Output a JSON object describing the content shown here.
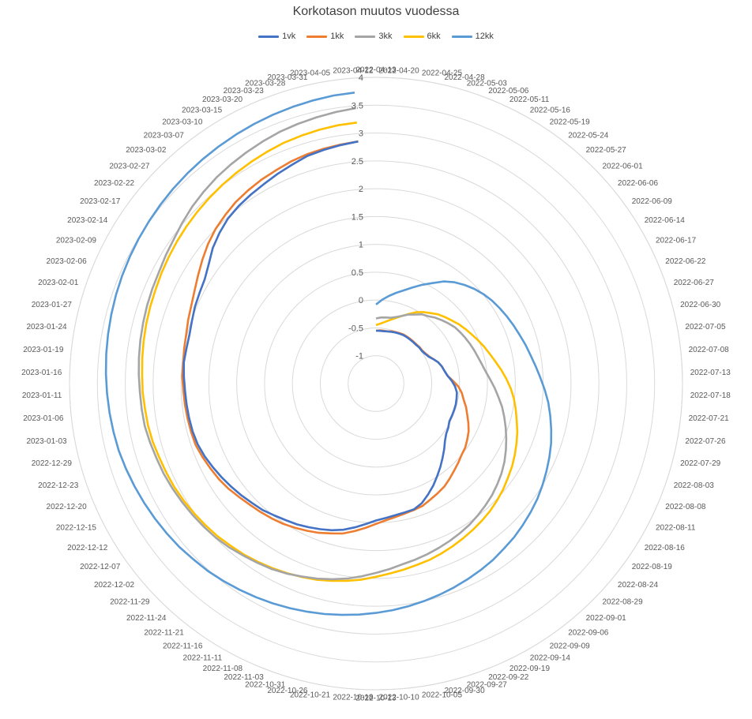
{
  "colors": {
    "1vk": "#4472C4",
    "1kk": "#ED7D31",
    "3kk": "#A5A5A5",
    "6kk": "#FFC000",
    "12kk": "#5B9BD5",
    "grid": "#D9D9D9"
  },
  "chart_data": {
    "type": "radar",
    "title": "Korkotason muutos vuodessa",
    "legend_position": "top",
    "grid": true,
    "r_ticks": [
      "4",
      "3.5",
      "3",
      "2.5",
      "2",
      "1.5",
      "1",
      "0.5",
      "0",
      "-0.5",
      "-1"
    ],
    "rlim": [
      -1.5,
      4
    ],
    "category_labels": [
      "2022-04-13",
      "2022-04-20",
      "2022-04-25",
      "2022-04-28",
      "2022-05-03",
      "2022-05-06",
      "2022-05-11",
      "2022-05-16",
      "2022-05-19",
      "2022-05-24",
      "2022-05-27",
      "2022-06-01",
      "2022-06-06",
      "2022-06-09",
      "2022-06-14",
      "2022-06-17",
      "2022-06-22",
      "2022-06-27",
      "2022-06-30",
      "2022-07-05",
      "2022-07-08",
      "2022-07-13",
      "2022-07-18",
      "2022-07-21",
      "2022-07-26",
      "2022-07-29",
      "2022-08-03",
      "2022-08-08",
      "2022-08-11",
      "2022-08-16",
      "2022-08-19",
      "2022-08-24",
      "2022-08-29",
      "2022-09-01",
      "2022-09-06",
      "2022-09-09",
      "2022-09-14",
      "2022-09-19",
      "2022-09-22",
      "2022-09-27",
      "2022-09-30",
      "2022-10-05",
      "2022-10-10",
      "2022-10-13",
      "2022-10-18",
      "2022-10-21",
      "2022-10-26",
      "2022-10-31",
      "2022-11-03",
      "2022-11-08",
      "2022-11-11",
      "2022-11-16",
      "2022-11-21",
      "2022-11-24",
      "2022-11-29",
      "2022-12-02",
      "2022-12-07",
      "2022-12-12",
      "2022-12-15",
      "2022-12-20",
      "2022-12-23",
      "2022-12-29",
      "2023-01-03",
      "2023-01-06",
      "2023-01-11",
      "2023-01-16",
      "2023-01-19",
      "2023-01-24",
      "2023-01-27",
      "2023-02-01",
      "2023-02-06",
      "2023-02-09",
      "2023-02-14",
      "2023-02-17",
      "2023-02-22",
      "2023-02-27",
      "2023-03-02",
      "2023-03-07",
      "2023-03-10",
      "2023-03-15",
      "2023-03-20",
      "2023-03-23",
      "2023-03-28",
      "2023-03-31",
      "2023-04-05",
      "2023-04-12"
    ],
    "series": [
      {
        "name": "1vk",
        "values": [
          -0.55,
          -0.55,
          -0.55,
          -0.54,
          -0.53,
          -0.52,
          -0.51,
          -0.5,
          -0.5,
          -0.5,
          -0.5,
          -0.5,
          -0.49,
          -0.49,
          -0.47,
          -0.44,
          -0.38,
          -0.32,
          -0.28,
          -0.25,
          -0.21,
          -0.14,
          -0.08,
          -0.04,
          -0.03,
          -0.02,
          -0.02,
          -0.02,
          -0.02,
          0.02,
          0.05,
          0.11,
          0.2,
          0.29,
          0.39,
          0.49,
          0.6,
          0.7,
          0.8,
          0.86,
          0.87,
          0.89,
          0.92,
          0.96,
          1.03,
          1.11,
          1.19,
          1.25,
          1.3,
          1.35,
          1.4,
          1.44,
          1.49,
          1.55,
          1.59,
          1.64,
          1.69,
          1.74,
          1.79,
          1.84,
          1.88,
          1.9,
          1.91,
          1.92,
          1.93,
          1.95,
          1.97,
          1.96,
          1.96,
          1.99,
          2.03,
          2.06,
          2.1,
          2.19,
          2.31,
          2.4,
          2.48,
          2.53,
          2.57,
          2.61,
          2.66,
          2.71,
          2.77,
          2.8,
          2.83,
          2.86
        ]
      },
      {
        "name": "1kk",
        "values": [
          -0.55,
          -0.54,
          -0.54,
          -0.54,
          -0.52,
          -0.51,
          -0.5,
          -0.49,
          -0.49,
          -0.49,
          -0.49,
          -0.49,
          -0.48,
          -0.48,
          -0.46,
          -0.43,
          -0.38,
          -0.32,
          -0.28,
          -0.25,
          -0.21,
          -0.12,
          -0.02,
          0.05,
          0.1,
          0.17,
          0.23,
          0.3,
          0.37,
          0.42,
          0.47,
          0.5,
          0.55,
          0.6,
          0.66,
          0.72,
          0.76,
          0.8,
          0.85,
          0.87,
          0.89,
          0.92,
          0.96,
          1.02,
          1.1,
          1.18,
          1.26,
          1.31,
          1.37,
          1.42,
          1.47,
          1.52,
          1.56,
          1.6,
          1.64,
          1.69,
          1.75,
          1.8,
          1.84,
          1.88,
          1.92,
          1.93,
          1.94,
          1.95,
          1.96,
          1.98,
          1.98,
          2.0,
          2.02,
          2.06,
          2.1,
          2.16,
          2.24,
          2.33,
          2.42,
          2.5,
          2.56,
          2.62,
          2.66,
          2.7,
          2.73,
          2.77,
          2.8,
          2.82,
          2.84,
          2.86
        ]
      },
      {
        "name": "3kk",
        "values": [
          -0.33,
          -0.31,
          -0.3,
          -0.29,
          -0.25,
          -0.2,
          -0.13,
          -0.08,
          -0.01,
          0.03,
          0.09,
          0.14,
          0.19,
          0.24,
          0.27,
          0.3,
          0.33,
          0.36,
          0.39,
          0.43,
          0.48,
          0.55,
          0.63,
          0.71,
          0.8,
          0.88,
          0.96,
          1.04,
          1.12,
          1.2,
          1.27,
          1.33,
          1.39,
          1.44,
          1.49,
          1.54,
          1.58,
          1.62,
          1.66,
          1.7,
          1.74,
          1.78,
          1.84,
          1.9,
          1.97,
          2.04,
          2.1,
          2.16,
          2.21,
          2.27,
          2.32,
          2.36,
          2.4,
          2.45,
          2.49,
          2.52,
          2.55,
          2.58,
          2.61,
          2.64,
          2.66,
          2.69,
          2.72,
          2.73,
          2.74,
          2.76,
          2.78,
          2.8,
          2.82,
          2.84,
          2.86,
          2.88,
          2.92,
          2.96,
          3.02,
          3.08,
          3.13,
          3.18,
          3.22,
          3.26,
          3.3,
          3.34,
          3.37,
          3.4,
          3.43,
          3.46
        ]
      },
      {
        "name": "6kk",
        "values": [
          -0.45,
          -0.42,
          -0.38,
          -0.33,
          -0.27,
          -0.2,
          -0.12,
          -0.03,
          0.04,
          0.1,
          0.17,
          0.22,
          0.27,
          0.33,
          0.38,
          0.43,
          0.49,
          0.55,
          0.61,
          0.68,
          0.76,
          0.84,
          0.92,
          0.99,
          1.05,
          1.11,
          1.18,
          1.24,
          1.3,
          1.36,
          1.41,
          1.47,
          1.52,
          1.57,
          1.61,
          1.65,
          1.69,
          1.73,
          1.77,
          1.81,
          1.84,
          1.88,
          1.92,
          1.97,
          2.03,
          2.08,
          2.13,
          2.18,
          2.22,
          2.26,
          2.3,
          2.34,
          2.38,
          2.41,
          2.45,
          2.48,
          2.51,
          2.54,
          2.57,
          2.59,
          2.61,
          2.64,
          2.66,
          2.67,
          2.69,
          2.7,
          2.72,
          2.74,
          2.76,
          2.78,
          2.8,
          2.83,
          2.86,
          2.89,
          2.92,
          2.95,
          2.98,
          3.01,
          3.04,
          3.07,
          3.1,
          3.13,
          3.15,
          3.17,
          3.19,
          3.2
        ]
      },
      {
        "name": "12kk",
        "values": [
          -0.08,
          0.01,
          0.09,
          0.17,
          0.25,
          0.35,
          0.46,
          0.57,
          0.7,
          0.8,
          0.88,
          0.95,
          1.01,
          1.06,
          1.1,
          1.14,
          1.18,
          1.22,
          1.27,
          1.32,
          1.38,
          1.45,
          1.53,
          1.61,
          1.68,
          1.75,
          1.82,
          1.88,
          1.94,
          2.0,
          2.06,
          2.11,
          2.16,
          2.21,
          2.25,
          2.3,
          2.34,
          2.38,
          2.42,
          2.46,
          2.5,
          2.54,
          2.58,
          2.62,
          2.66,
          2.7,
          2.74,
          2.78,
          2.82,
          2.86,
          2.9,
          2.94,
          2.98,
          3.02,
          3.05,
          3.09,
          3.12,
          3.15,
          3.18,
          3.21,
          3.24,
          3.27,
          3.29,
          3.31,
          3.33,
          3.35,
          3.37,
          3.39,
          3.41,
          3.43,
          3.45,
          3.47,
          3.49,
          3.51,
          3.53,
          3.55,
          3.57,
          3.59,
          3.61,
          3.63,
          3.65,
          3.67,
          3.69,
          3.71,
          3.73,
          3.74
        ]
      }
    ]
  }
}
